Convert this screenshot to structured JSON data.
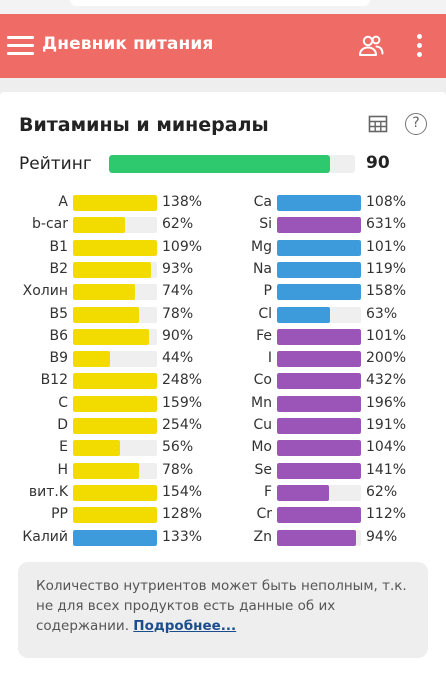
{
  "appbar": {
    "title": "Дневник питания"
  },
  "card": {
    "title": "Витамины и минералы"
  },
  "rating": {
    "label": "Рейтинг",
    "value": "90",
    "fraction": 0.9
  },
  "colors": {
    "appbar": "#ee6b66",
    "rating": "#2ec96f",
    "vitamin": "#f2dc00",
    "mineral_blue": "#3d9bdc",
    "mineral_purple": "#9b55b8"
  },
  "vitamins": [
    {
      "name": "A",
      "percent": "138%",
      "value": 138,
      "color": "#f2dc00"
    },
    {
      "name": "b-car",
      "percent": "62%",
      "value": 62,
      "color": "#f2dc00"
    },
    {
      "name": "B1",
      "percent": "109%",
      "value": 109,
      "color": "#f2dc00"
    },
    {
      "name": "B2",
      "percent": "93%",
      "value": 93,
      "color": "#f2dc00"
    },
    {
      "name": "Холин",
      "percent": "74%",
      "value": 74,
      "color": "#f2dc00"
    },
    {
      "name": "B5",
      "percent": "78%",
      "value": 78,
      "color": "#f2dc00"
    },
    {
      "name": "B6",
      "percent": "90%",
      "value": 90,
      "color": "#f2dc00"
    },
    {
      "name": "B9",
      "percent": "44%",
      "value": 44,
      "color": "#f2dc00"
    },
    {
      "name": "B12",
      "percent": "248%",
      "value": 248,
      "color": "#f2dc00"
    },
    {
      "name": "C",
      "percent": "159%",
      "value": 159,
      "color": "#f2dc00"
    },
    {
      "name": "D",
      "percent": "254%",
      "value": 254,
      "color": "#f2dc00"
    },
    {
      "name": "E",
      "percent": "56%",
      "value": 56,
      "color": "#f2dc00"
    },
    {
      "name": "H",
      "percent": "78%",
      "value": 78,
      "color": "#f2dc00"
    },
    {
      "name": "вит.K",
      "percent": "154%",
      "value": 154,
      "color": "#f2dc00"
    },
    {
      "name": "PP",
      "percent": "128%",
      "value": 128,
      "color": "#f2dc00"
    },
    {
      "name": "Калий",
      "percent": "133%",
      "value": 133,
      "color": "#3d9bdc"
    }
  ],
  "minerals": [
    {
      "name": "Ca",
      "percent": "108%",
      "value": 108,
      "color": "#3d9bdc"
    },
    {
      "name": "Si",
      "percent": "631%",
      "value": 631,
      "color": "#9b55b8"
    },
    {
      "name": "Mg",
      "percent": "101%",
      "value": 101,
      "color": "#3d9bdc"
    },
    {
      "name": "Na",
      "percent": "119%",
      "value": 119,
      "color": "#3d9bdc"
    },
    {
      "name": "P",
      "percent": "158%",
      "value": 158,
      "color": "#3d9bdc"
    },
    {
      "name": "Cl",
      "percent": "63%",
      "value": 63,
      "color": "#3d9bdc"
    },
    {
      "name": "Fe",
      "percent": "101%",
      "value": 101,
      "color": "#9b55b8"
    },
    {
      "name": "I",
      "percent": "200%",
      "value": 200,
      "color": "#9b55b8"
    },
    {
      "name": "Co",
      "percent": "432%",
      "value": 432,
      "color": "#9b55b8"
    },
    {
      "name": "Mn",
      "percent": "196%",
      "value": 196,
      "color": "#9b55b8"
    },
    {
      "name": "Cu",
      "percent": "191%",
      "value": 191,
      "color": "#9b55b8"
    },
    {
      "name": "Mo",
      "percent": "104%",
      "value": 104,
      "color": "#9b55b8"
    },
    {
      "name": "Se",
      "percent": "141%",
      "value": 141,
      "color": "#9b55b8"
    },
    {
      "name": "F",
      "percent": "62%",
      "value": 62,
      "color": "#9b55b8"
    },
    {
      "name": "Cr",
      "percent": "112%",
      "value": 112,
      "color": "#9b55b8"
    },
    {
      "name": "Zn",
      "percent": "94%",
      "value": 94,
      "color": "#9b55b8"
    }
  ],
  "note": {
    "text": "Количество нутриентов может быть неполным, т.к. не для всех продуктов есть данные об их содержании.",
    "link": "Подробнее..."
  },
  "icons": {
    "menu": "hamburger-icon",
    "users": "users-icon",
    "more": "more-vert-icon",
    "table": "table-icon",
    "help": "help-icon"
  }
}
